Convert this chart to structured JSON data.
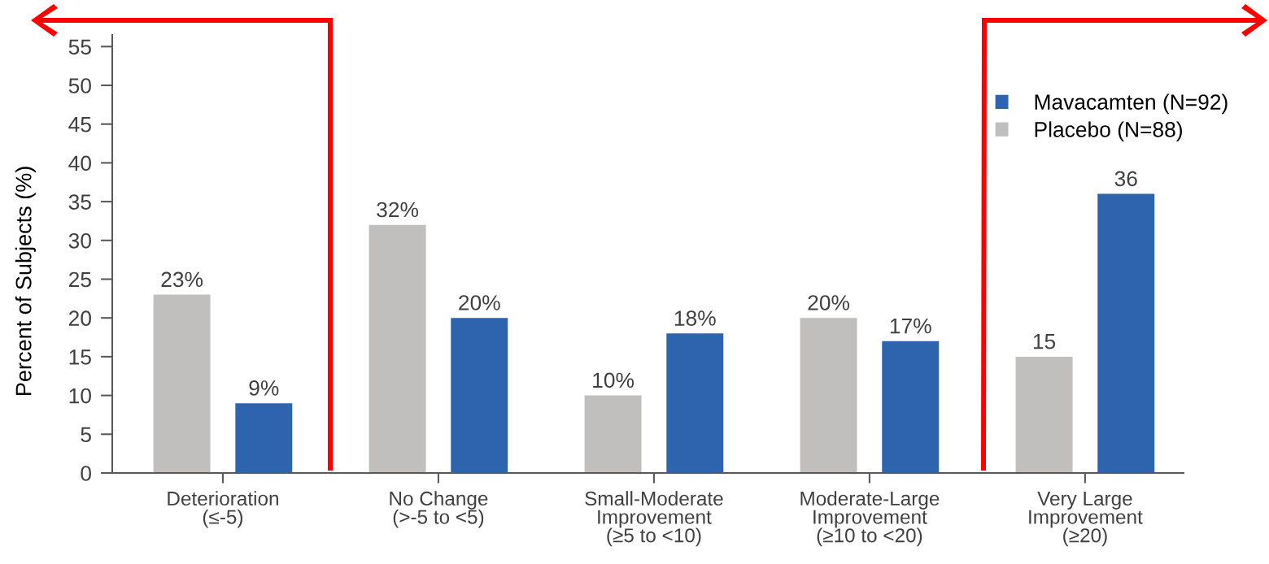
{
  "chart_data": {
    "type": "bar",
    "ylabel": "Percent of Subjects (%)",
    "categories": [
      "Deterioration\n(≤-5)",
      "No Change\n(>-5 to <5)",
      "Small-Moderate\nImprovement\n(≥5 to <10)",
      "Moderate-Large\nImprovement\n(≥10 to <20)",
      "Very Large\nImprovement\n(≥20)"
    ],
    "series": [
      {
        "name": "Placebo (N=88)",
        "color": "#c0bfbd",
        "values": [
          23,
          32,
          10,
          20,
          15
        ],
        "value_labels": [
          "23%",
          "32%",
          "10%",
          "20%",
          "15"
        ]
      },
      {
        "name": "Mavacamten (N=92)",
        "color": "#2e64ad",
        "values": [
          9,
          20,
          18,
          17,
          36
        ],
        "value_labels": [
          "9%",
          "20%",
          "18%",
          "17%",
          "36"
        ]
      }
    ],
    "ylim": [
      0,
      56.5
    ],
    "yticks": [
      0,
      5,
      10,
      15,
      20,
      25,
      30,
      35,
      40,
      45,
      50,
      55
    ],
    "grid": false,
    "legend": "top right"
  }
}
